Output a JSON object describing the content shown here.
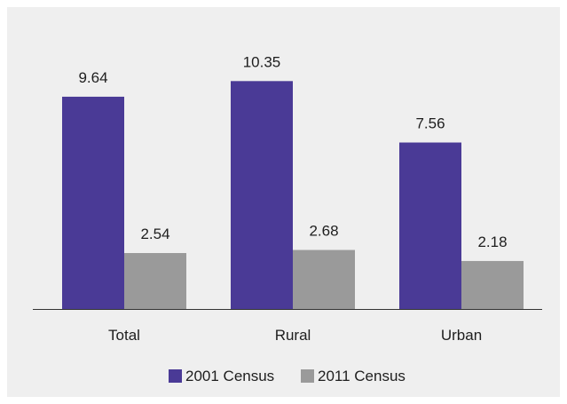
{
  "chart_data": {
    "type": "bar",
    "categories": [
      "Total",
      "Rural",
      "Urban"
    ],
    "series": [
      {
        "name": "2001 Census",
        "values": [
          9.64,
          10.35,
          7.56
        ],
        "color": "#4a3a96"
      },
      {
        "name": "2011 Census",
        "values": [
          2.54,
          2.68,
          2.18
        ],
        "color": "#9a9a9a"
      }
    ],
    "title": "",
    "xlabel": "",
    "ylabel": "",
    "ylim": [
      0,
      12
    ],
    "grid": false,
    "legend_position": "bottom",
    "data_labels": [
      "9.64",
      "2.54",
      "10.35",
      "2.68",
      "7.56",
      "2.18"
    ]
  }
}
